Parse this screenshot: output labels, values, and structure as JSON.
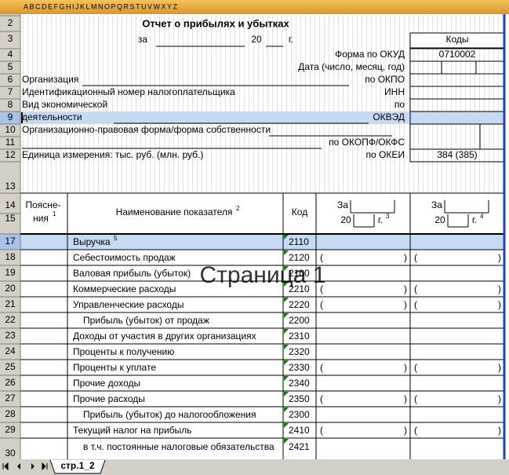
{
  "column_header": "ABCDEFGHIJKLMNOPQRSTUVWXYZ",
  "row_numbers": [
    "2",
    "3",
    "4",
    "5",
    "6",
    "7",
    "8",
    "9",
    "10",
    "11",
    "12",
    "13",
    "14",
    "15",
    "17",
    "18",
    "19",
    "20",
    "21",
    "22",
    "23",
    "24",
    "25",
    "26",
    "27",
    "28",
    "29",
    "30"
  ],
  "header": {
    "title": "Отчет о прибылях и убытках",
    "za": "за",
    "year": "20",
    "g": "г.",
    "codes_label": "Коды"
  },
  "form_rows": [
    {
      "right": "Форма по ОКУД",
      "code": "0710002"
    },
    {
      "right": "Дата (число, месяц, год)"
    },
    {
      "left": "Организация",
      "right": "по ОКПО"
    },
    {
      "left": "Идентификационный номер налогоплательщика",
      "right": "ИНН"
    },
    {
      "left": "Вид экономической",
      "right": "по"
    },
    {
      "left": "деятельности",
      "right": "ОКВЭД"
    },
    {
      "left": "Организационно-правовая форма/форма собственности"
    },
    {
      "right": "по ОКОПФ/ОКФС"
    },
    {
      "left": "Единица измерения: тыс. руб. (млн. руб.)",
      "right": "по ОКЕИ",
      "code": "384 (385)"
    }
  ],
  "table_header": {
    "notes": [
      "Поясне-",
      "ния"
    ],
    "notes_sup": "1",
    "name": "Наименование показателя",
    "name_sup": "2",
    "code": "Код",
    "periods": [
      {
        "za": "За",
        "year": "20",
        "g": "г.",
        "sup": "3"
      },
      {
        "za": "За",
        "year": "20",
        "g": "г.",
        "sup": "4"
      }
    ]
  },
  "brackets": [
    "(",
    ")"
  ],
  "rows": [
    {
      "name": "Выручка",
      "sup": "5",
      "code": "2110"
    },
    {
      "name": "Себестоимость продаж",
      "code": "2120",
      "brackets": true
    },
    {
      "name": "Валовая прибыль (убыток)",
      "code": "2100"
    },
    {
      "name": "Коммерческие расходы",
      "code": "2210",
      "brackets": true
    },
    {
      "name": "Управленческие расходы",
      "code": "2220",
      "brackets": true
    },
    {
      "name": "Прибыль (убыток) от продаж",
      "code": "2200",
      "indent": true
    },
    {
      "name": "Доходы от участия в других организациях",
      "code": "2310"
    },
    {
      "name": "Проценты к получению",
      "code": "2320"
    },
    {
      "name": "Проценты к уплате",
      "code": "2330",
      "brackets": true
    },
    {
      "name": "Прочие доходы",
      "code": "2340"
    },
    {
      "name": "Прочие расходы",
      "code": "2350",
      "brackets": true
    },
    {
      "name": "Прибыль (убыток) до налогообложения",
      "code": "2300",
      "indent": true
    },
    {
      "name": "Текущий налог на прибыль",
      "code": "2410",
      "brackets": true
    },
    {
      "name": "в т.ч. постоянные налоговые обязательства",
      "code": "2421",
      "indent": true
    }
  ],
  "watermark": "Страница 1",
  "sheet_tab": "стр.1_2"
}
